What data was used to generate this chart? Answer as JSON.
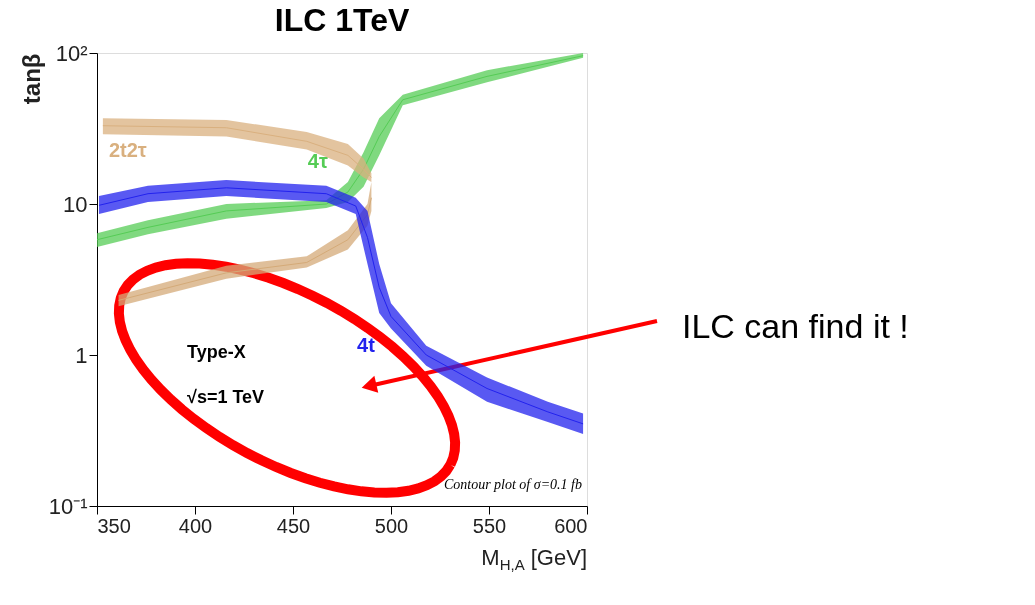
{
  "chart_data": {
    "type": "line",
    "title": "ILC 1TeV",
    "xlabel": "M$_{H,A}$ [GeV]",
    "ylabel": "tanβ",
    "log": true,
    "grid": false,
    "marker": "none",
    "xlim": [
      350,
      600
    ],
    "xticks": [
      350,
      400,
      450,
      500,
      550,
      600
    ],
    "ylim": [
      0.1,
      100
    ],
    "yticks": [
      {
        "value": 0.1,
        "label": "10⁻¹"
      },
      1,
      10,
      {
        "value": 100,
        "label": "10²"
      }
    ],
    "series": [
      {
        "name": "4τ",
        "color": "#55cc55",
        "x": [
          350,
          376,
          416,
          467,
          478,
          486,
          494,
          506,
          549,
          598
        ],
        "values": [
          5.8,
          7.0,
          9.0,
          10,
          12,
          17,
          28,
          49,
          70,
          96
        ],
        "lower": [
          5.2,
          6.3,
          8.0,
          9.4,
          10.3,
          13,
          21,
          45,
          64,
          93
        ],
        "upper": [
          6.4,
          7.8,
          10,
          10.6,
          14,
          22,
          37,
          53,
          77,
          100
        ]
      },
      {
        "name": "2t2τ",
        "color": "#d9b07f",
        "x": [
          353,
          416,
          457,
          478,
          486,
          490
        ],
        "values": [
          33,
          32,
          26,
          21,
          17,
          15
        ],
        "lower": [
          29,
          28,
          23,
          18,
          15,
          14
        ],
        "upper": [
          37,
          36,
          30,
          25,
          20,
          16
        ]
      },
      {
        "color": "#d4aa78",
        "x": [
          361,
          416,
          457,
          478,
          488,
          490
        ],
        "values": [
          2.3,
          3.5,
          4.1,
          5.8,
          8.5,
          11
        ],
        "lower": [
          2.1,
          3.2,
          3.8,
          5.0,
          7.2,
          9
        ],
        "upper": [
          2.5,
          3.9,
          4.5,
          6.7,
          10,
          14
        ]
      },
      {
        "name": "4t",
        "color": "#2222ee",
        "x": [
          351,
          376,
          416,
          467,
          482,
          488,
          494,
          500,
          518,
          549,
          580,
          598
        ],
        "values": [
          9.8,
          11.7,
          12.8,
          11.7,
          9.7,
          6,
          2.8,
          1.8,
          1.0,
          0.6,
          0.42,
          0.35
        ],
        "lower": [
          8.6,
          10.3,
          11.3,
          10.3,
          8.6,
          4,
          1.9,
          1.5,
          0.85,
          0.49,
          0.36,
          0.3
        ],
        "upper": [
          11.3,
          13.2,
          14.4,
          13.2,
          11,
          9,
          4,
          2.2,
          1.15,
          0.71,
          0.49,
          0.41
        ]
      }
    ],
    "annotations": [
      "Type-X",
      "√s=1 TeV",
      "Contour plot of σ=0.1 fb",
      "ILC can find it !"
    ]
  }
}
